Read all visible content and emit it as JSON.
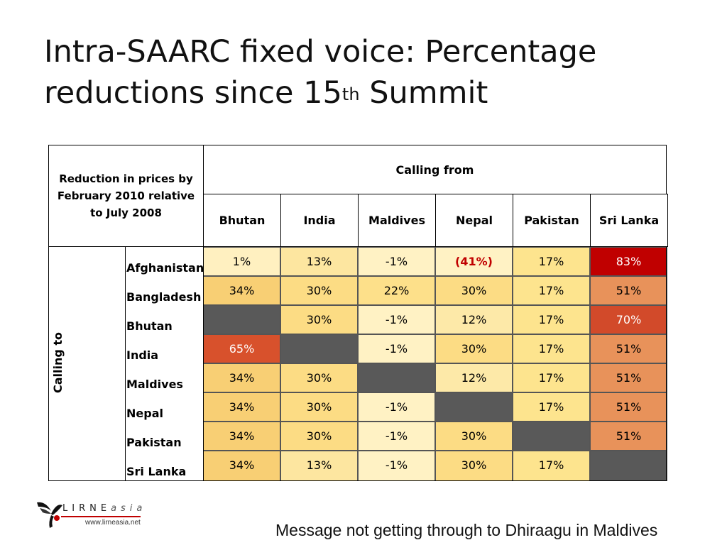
{
  "slide": {
    "title_main": "Intra-SAARC fixed voice: Percentage reductions since 15",
    "title_sup": "th",
    "title_end": " Summit",
    "footer": "Message not getting through to Dhiraagu in Maldives"
  },
  "logo": {
    "name": "LIRNE",
    "name_suffix": "asia",
    "url": "www.lirneasia.net"
  },
  "chart_data": {
    "type": "table",
    "title": "Intra-SAARC fixed voice: Percentage reductions since 15th Summit",
    "corner_label": "Reduction in prices by February 2010 relative to July 2008",
    "column_group": "Calling from",
    "row_group": "Calling to",
    "columns": [
      "Bhutan",
      "India",
      "Maldives",
      "Nepal",
      "Pakistan",
      "Sri Lanka"
    ],
    "rows": [
      {
        "label": "Afghanistan",
        "values": [
          "1%",
          "13%",
          "-1%",
          "(41%)",
          "17%",
          "83%"
        ]
      },
      {
        "label": "Bangladesh",
        "values": [
          "34%",
          "30%",
          "22%",
          "30%",
          "17%",
          "51%"
        ]
      },
      {
        "label": "Bhutan",
        "values": [
          "",
          "30%",
          "-1%",
          "12%",
          "17%",
          "70%"
        ]
      },
      {
        "label": "India",
        "values": [
          "65%",
          "",
          "-1%",
          "30%",
          "17%",
          "51%"
        ]
      },
      {
        "label": "Maldives",
        "values": [
          "34%",
          "30%",
          "",
          "12%",
          "17%",
          "51%"
        ]
      },
      {
        "label": "Nepal",
        "values": [
          "34%",
          "30%",
          "-1%",
          "",
          "17%",
          "51%"
        ]
      },
      {
        "label": "Pakistan",
        "values": [
          "34%",
          "30%",
          "-1%",
          "30%",
          "",
          "51%"
        ]
      },
      {
        "label": "Sri Lanka",
        "values": [
          "34%",
          "13%",
          "-1%",
          "30%",
          "17%",
          ""
        ]
      }
    ],
    "colors": {
      "-1%": "#fff2c4",
      "1%": "#fff0c0",
      "(41%)": "#fff2c4",
      "12%": "#fde9a8",
      "13%": "#fde6a0",
      "17%": "#fde48e",
      "22%": "#fde08a",
      "30%": "#fcdc84",
      "34%": "#f8cf74",
      "51%": "#e8925a",
      "65%": "#d8512c",
      "70%": "#d24a2a",
      "83%": "#c00000",
      "blank": "#595959"
    },
    "negative_highlight_color": "#c00000"
  }
}
